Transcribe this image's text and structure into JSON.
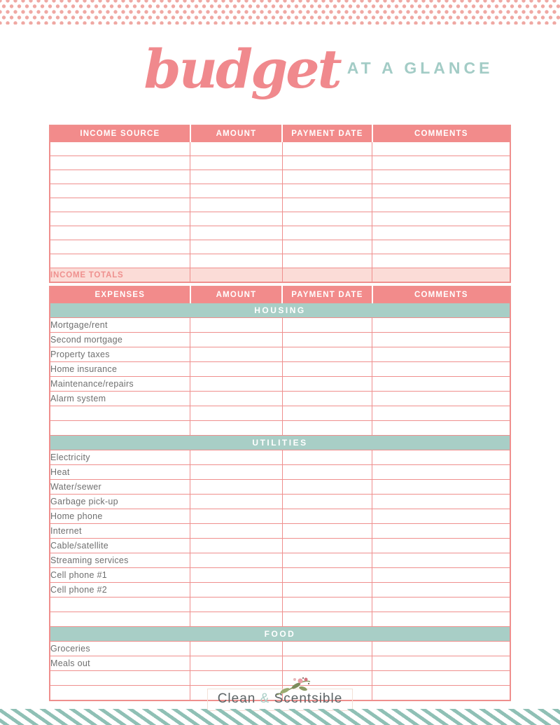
{
  "title": {
    "script": "budget",
    "rest": "AT A GLANCE"
  },
  "income_table": {
    "headers": [
      "INCOME SOURCE",
      "AMOUNT",
      "PAYMENT DATE",
      "COMMENTS"
    ],
    "empty_row_count": 9,
    "totals_label": "INCOME TOTALS"
  },
  "expense_table": {
    "headers": [
      "EXPENSES",
      "AMOUNT",
      "PAYMENT DATE",
      "COMMENTS"
    ],
    "sections": [
      {
        "name": "HOUSING",
        "items": [
          "Mortgage/rent",
          "Second mortgage",
          "Property taxes",
          "Home insurance",
          "Maintenance/repairs",
          "Alarm system"
        ],
        "empty_rows": 2
      },
      {
        "name": "UTILITIES",
        "items": [
          "Electricity",
          "Heat",
          "Water/sewer",
          "Garbage pick-up",
          "Home phone",
          "Internet",
          "Cable/satellite",
          "Streaming services",
          "Cell phone #1",
          "Cell phone #2"
        ],
        "empty_rows": 2
      },
      {
        "name": "FOOD",
        "items": [
          "Groceries",
          "Meals out"
        ],
        "empty_rows": 2
      }
    ]
  },
  "footer": {
    "brand_part1": "Clean",
    "brand_amp": "&",
    "brand_part2": "Scentsible"
  },
  "colors": {
    "header_pink": "#f28b8b",
    "border_pink": "#ef8f8d",
    "totals_bg_pink": "#fbdcd7",
    "totals_text_pink": "#ef908e",
    "section_teal": "#a8cec6",
    "title_script_pink": "#f0898d",
    "title_rest_teal": "#a3ccc6",
    "label_gray": "#6f6f6f",
    "dots_pink": "#efa8a3",
    "stripes_teal": "#8fc0b5",
    "logo_gray": "#5c6466"
  }
}
